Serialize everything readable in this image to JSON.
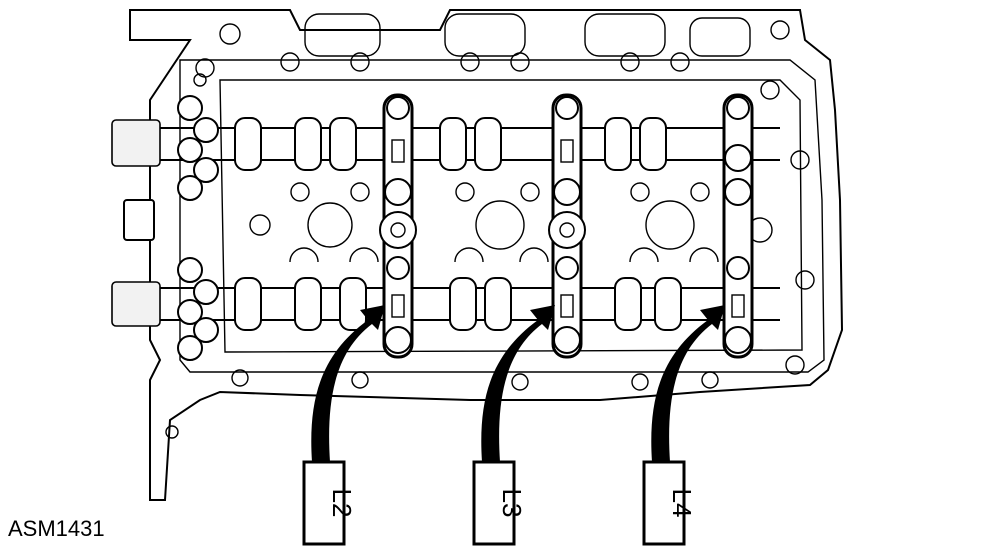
{
  "figure_code": "ASM1431",
  "callouts": [
    {
      "label": "L2"
    },
    {
      "label": "L3"
    },
    {
      "label": "L4"
    }
  ],
  "colors": {
    "line": "#000000",
    "background": "#ffffff"
  }
}
